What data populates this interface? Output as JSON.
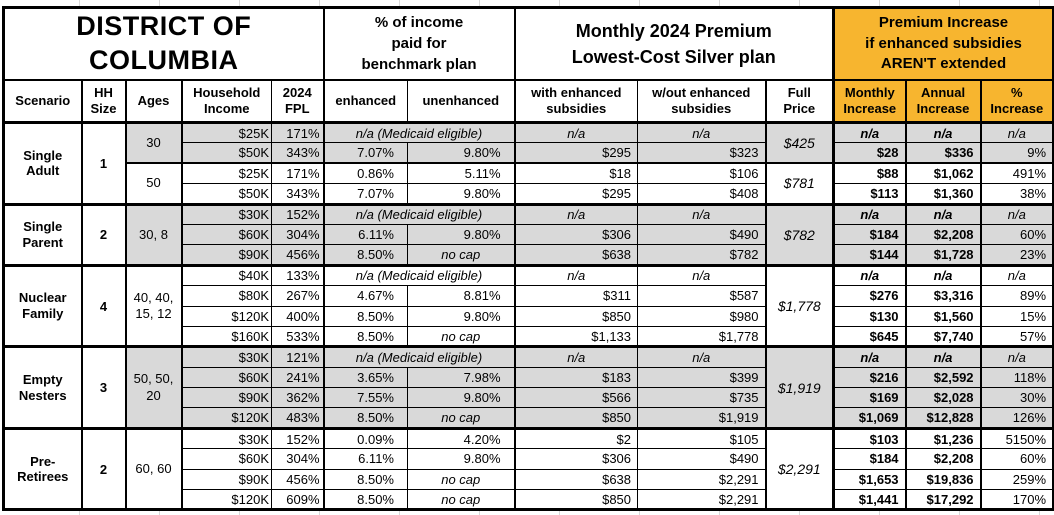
{
  "title": "DISTRICT OF\nCOLUMBIA",
  "section_headers": {
    "benchmark": "% of income\npaid for\nbenchmark plan",
    "premium": "Monthly 2024 Premium\nLowest-Cost Silver plan",
    "increase": "Premium Increase\nif enhanced subsidies\nAREN'T extended"
  },
  "columns": {
    "scenario": "Scenario",
    "hh_size": "HH\nSize",
    "ages": "Ages",
    "income": "Household\nIncome",
    "fpl": "2024\nFPL",
    "enhanced": "enhanced",
    "unenhanced": "unenhanced",
    "with_sub": "with enhanced\nsubsidies",
    "wo_sub": "w/out enhanced\nsubsidies",
    "full_price": "Full\nPrice",
    "monthly": "Monthly\nIncrease",
    "annual": "Annual\nIncrease",
    "pct": "%\nIncrease"
  },
  "colors": {
    "increase_header_bg": "#F7B52F",
    "row_shade": "#D9D9D9"
  },
  "groups": [
    {
      "scenario": "Single Adult",
      "hh_size": "1",
      "subgroups": [
        {
          "ages": "30",
          "full_price": "$425",
          "shaded": true,
          "rows": [
            {
              "income": "$25K",
              "fpl": "171%",
              "enhanced": "n/a (Medicaid eligible)",
              "with_sub": "n/a",
              "wo_sub": "n/a",
              "monthly": "n/a",
              "annual": "n/a",
              "pct": "n/a"
            },
            {
              "income": "$50K",
              "fpl": "343%",
              "enhanced": "7.07%",
              "unenhanced": "9.80%",
              "with_sub": "$295",
              "wo_sub": "$323",
              "monthly": "$28",
              "annual": "$336",
              "pct": "9%"
            }
          ]
        },
        {
          "ages": "50",
          "full_price": "$781",
          "shaded": false,
          "rows": [
            {
              "income": "$25K",
              "fpl": "171%",
              "enhanced": "0.86%",
              "unenhanced": "5.11%",
              "with_sub": "$18",
              "wo_sub": "$106",
              "monthly": "$88",
              "annual": "$1,062",
              "pct": "491%"
            },
            {
              "income": "$50K",
              "fpl": "343%",
              "enhanced": "7.07%",
              "unenhanced": "9.80%",
              "with_sub": "$295",
              "wo_sub": "$408",
              "monthly": "$113",
              "annual": "$1,360",
              "pct": "38%"
            }
          ]
        }
      ]
    },
    {
      "scenario": "Single Parent",
      "hh_size": "2",
      "subgroups": [
        {
          "ages": "30, 8",
          "full_price": "$782",
          "shaded": true,
          "rows": [
            {
              "income": "$30K",
              "fpl": "152%",
              "enhanced": "n/a (Medicaid eligible)",
              "with_sub": "n/a",
              "wo_sub": "n/a",
              "monthly": "n/a",
              "annual": "n/a",
              "pct": "n/a"
            },
            {
              "income": "$60K",
              "fpl": "304%",
              "enhanced": "6.11%",
              "unenhanced": "9.80%",
              "with_sub": "$306",
              "wo_sub": "$490",
              "monthly": "$184",
              "annual": "$2,208",
              "pct": "60%"
            },
            {
              "income": "$90K",
              "fpl": "456%",
              "enhanced": "8.50%",
              "unenhanced": "no cap",
              "with_sub": "$638",
              "wo_sub": "$782",
              "monthly": "$144",
              "annual": "$1,728",
              "pct": "23%"
            }
          ]
        }
      ]
    },
    {
      "scenario": "Nuclear Family",
      "hh_size": "4",
      "subgroups": [
        {
          "ages": "40, 40,\n15, 12",
          "full_price": "$1,778",
          "shaded": false,
          "rows": [
            {
              "income": "$40K",
              "fpl": "133%",
              "enhanced": "n/a (Medicaid eligible)",
              "with_sub": "n/a",
              "wo_sub": "n/a",
              "monthly": "n/a",
              "annual": "n/a",
              "pct": "n/a"
            },
            {
              "income": "$80K",
              "fpl": "267%",
              "enhanced": "4.67%",
              "unenhanced": "8.81%",
              "with_sub": "$311",
              "wo_sub": "$587",
              "monthly": "$276",
              "annual": "$3,316",
              "pct": "89%"
            },
            {
              "income": "$120K",
              "fpl": "400%",
              "enhanced": "8.50%",
              "unenhanced": "9.80%",
              "with_sub": "$850",
              "wo_sub": "$980",
              "monthly": "$130",
              "annual": "$1,560",
              "pct": "15%"
            },
            {
              "income": "$160K",
              "fpl": "533%",
              "enhanced": "8.50%",
              "unenhanced": "no cap",
              "with_sub": "$1,133",
              "wo_sub": "$1,778",
              "monthly": "$645",
              "annual": "$7,740",
              "pct": "57%"
            }
          ]
        }
      ]
    },
    {
      "scenario": "Empty Nesters",
      "hh_size": "3",
      "subgroups": [
        {
          "ages": "50, 50,\n20",
          "full_price": "$1,919",
          "shaded": true,
          "rows": [
            {
              "income": "$30K",
              "fpl": "121%",
              "enhanced": "n/a (Medicaid eligible)",
              "with_sub": "n/a",
              "wo_sub": "n/a",
              "monthly": "n/a",
              "annual": "n/a",
              "pct": "n/a"
            },
            {
              "income": "$60K",
              "fpl": "241%",
              "enhanced": "3.65%",
              "unenhanced": "7.98%",
              "with_sub": "$183",
              "wo_sub": "$399",
              "monthly": "$216",
              "annual": "$2,592",
              "pct": "118%"
            },
            {
              "income": "$90K",
              "fpl": "362%",
              "enhanced": "7.55%",
              "unenhanced": "9.80%",
              "with_sub": "$566",
              "wo_sub": "$735",
              "monthly": "$169",
              "annual": "$2,028",
              "pct": "30%"
            },
            {
              "income": "$120K",
              "fpl": "483%",
              "enhanced": "8.50%",
              "unenhanced": "no cap",
              "with_sub": "$850",
              "wo_sub": "$1,919",
              "monthly": "$1,069",
              "annual": "$12,828",
              "pct": "126%"
            }
          ]
        }
      ]
    },
    {
      "scenario": "Pre-Retirees",
      "hh_size": "2",
      "subgroups": [
        {
          "ages": "60, 60",
          "full_price": "$2,291",
          "shaded": false,
          "rows": [
            {
              "income": "$30K",
              "fpl": "152%",
              "enhanced": "0.09%",
              "unenhanced": "4.20%",
              "with_sub": "$2",
              "wo_sub": "$105",
              "monthly": "$103",
              "annual": "$1,236",
              "pct": "5150%"
            },
            {
              "income": "$60K",
              "fpl": "304%",
              "enhanced": "6.11%",
              "unenhanced": "9.80%",
              "with_sub": "$306",
              "wo_sub": "$490",
              "monthly": "$184",
              "annual": "$2,208",
              "pct": "60%"
            },
            {
              "income": "$90K",
              "fpl": "456%",
              "enhanced": "8.50%",
              "unenhanced": "no cap",
              "with_sub": "$638",
              "wo_sub": "$2,291",
              "monthly": "$1,653",
              "annual": "$19,836",
              "pct": "259%"
            },
            {
              "income": "$120K",
              "fpl": "609%",
              "enhanced": "8.50%",
              "unenhanced": "no cap",
              "with_sub": "$850",
              "wo_sub": "$2,291",
              "monthly": "$1,441",
              "annual": "$17,292",
              "pct": "170%"
            }
          ]
        }
      ]
    }
  ]
}
